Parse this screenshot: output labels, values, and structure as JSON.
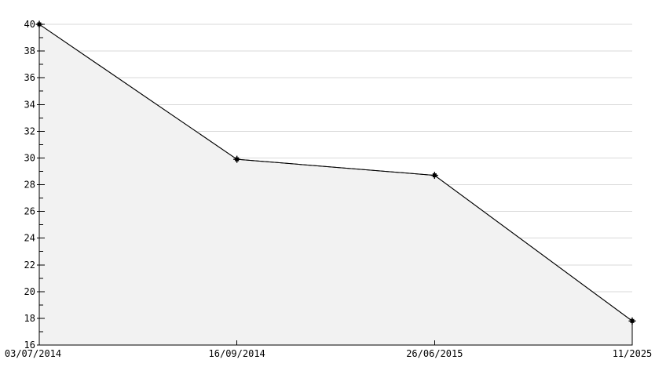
{
  "chart_data": {
    "type": "area",
    "title": "",
    "xlabel": "",
    "ylabel": "",
    "x_labels": [
      "03/07/2014",
      "16/09/2014",
      "26/06/2015",
      "11/2025"
    ],
    "series": [
      {
        "name": "value",
        "values": [
          40,
          29.9,
          28.7,
          17.8
        ]
      }
    ],
    "ylim": [
      16,
      40
    ],
    "ytick_step": 2,
    "ytick_minor_step": 1,
    "ytick_labels": [
      "16",
      "18",
      "20",
      "22",
      "24",
      "26",
      "28",
      "30",
      "32",
      "34",
      "36",
      "38",
      "40"
    ],
    "grid": "horizontal-major-only",
    "legend": "none",
    "marker": "filled-square",
    "colors": {
      "line": "#000000",
      "marker": "#000000",
      "area_fill": "#f2f2f2",
      "gridline": "#d9d9d9",
      "axis": "#000000",
      "text": "#000000",
      "background": "#ffffff"
    }
  }
}
